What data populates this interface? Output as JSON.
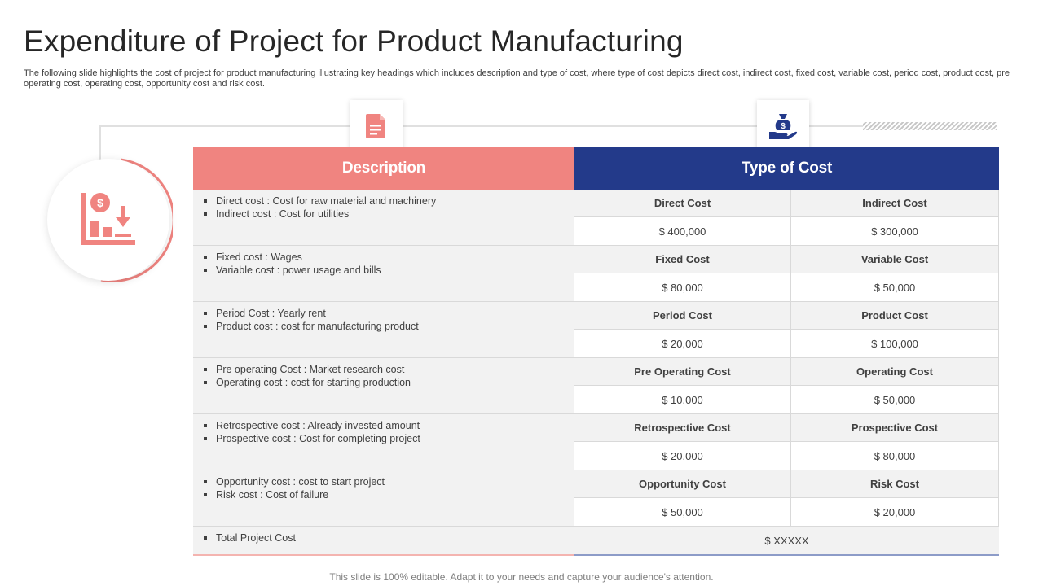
{
  "title": "Expenditure of Project for Product Manufacturing",
  "subtitle": "The following slide highlights the cost of project for product manufacturing illustrating key headings which includes description and type of cost, where type of cost depicts direct cost, indirect cost, fixed cost, variable cost, period cost, product cost, pre operating cost, operating cost, opportunity cost and risk cost.",
  "icons": {
    "left": "cost-chart-icon",
    "doc": "document-icon",
    "bag": "money-bag-hand-icon"
  },
  "colors": {
    "description_header": "#f08480",
    "type_header": "#233a8a"
  },
  "table": {
    "description_header": "Description",
    "type_header": "Type of Cost",
    "rows": [
      {
        "desc": [
          "Direct cost : Cost for raw material and machinery",
          "Indirect cost : Cost for utilities"
        ],
        "cost1": "Direct Cost",
        "value1": "$ 400,000",
        "cost2": "Indirect Cost",
        "value2": "$ 300,000"
      },
      {
        "desc": [
          "Fixed cost : Wages",
          "Variable cost : power usage and bills"
        ],
        "cost1": "Fixed Cost",
        "value1": "$ 80,000",
        "cost2": "Variable Cost",
        "value2": "$ 50,000"
      },
      {
        "desc": [
          "Period Cost : Yearly rent",
          "Product cost : cost for manufacturing product"
        ],
        "cost1": "Period Cost",
        "value1": "$ 20,000",
        "cost2": "Product Cost",
        "value2": "$ 100,000"
      },
      {
        "desc": [
          "Pre operating Cost : Market research cost",
          "Operating cost : cost for starting production"
        ],
        "cost1": "Pre Operating Cost",
        "value1": "$ 10,000",
        "cost2": "Operating Cost",
        "value2": "$ 50,000"
      },
      {
        "desc": [
          "Retrospective  cost : Already invested amount",
          "Prospective cost : Cost for completing project"
        ],
        "cost1": "Retrospective Cost",
        "value1": "$ 20,000",
        "cost2": "Prospective Cost",
        "value2": "$ 80,000"
      },
      {
        "desc": [
          "Opportunity cost : cost to start project",
          "Risk cost : Cost of failure"
        ],
        "cost1": "Opportunity Cost",
        "value1": "$ 50,000",
        "cost2": "Risk Cost",
        "value2": "$ 20,000"
      }
    ],
    "total_label": "Total Project Cost",
    "total_value": "$ XXXXX"
  },
  "footer": "This slide is 100% editable. Adapt it to your needs and capture your audience's attention."
}
